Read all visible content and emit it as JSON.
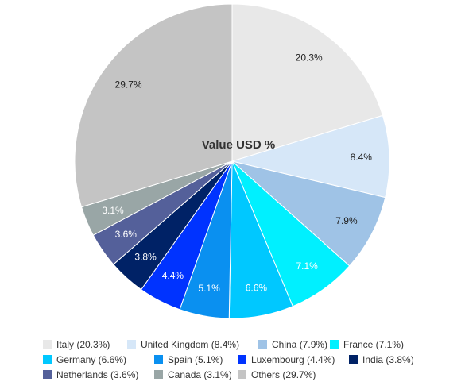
{
  "chart_data": {
    "type": "pie",
    "title": "Value USD %",
    "slices": [
      {
        "name": "Italy",
        "value": 20.3,
        "label": "20.3%",
        "legend": "Italy (20.3%)",
        "color": "#e8e8e8",
        "label_color": "#222222"
      },
      {
        "name": "United Kingdom",
        "value": 8.4,
        "label": "8.4%",
        "legend": "United Kingdom (8.4%)",
        "color": "#d6e7f8",
        "label_color": "#222222"
      },
      {
        "name": "China",
        "value": 7.9,
        "label": "7.9%",
        "legend": "China (7.9%)",
        "color": "#9fc3e6",
        "label_color": "#222222"
      },
      {
        "name": "France",
        "value": 7.1,
        "label": "7.1%",
        "legend": "France (7.1%)",
        "color": "#00f0ff",
        "label_color": "#ffffff"
      },
      {
        "name": "Germany",
        "value": 6.6,
        "label": "6.6%",
        "legend": "Germany (6.6%)",
        "color": "#00c8ff",
        "label_color": "#ffffff"
      },
      {
        "name": "Spain",
        "value": 5.1,
        "label": "5.1%",
        "legend": "Spain (5.1%)",
        "color": "#0a90f0",
        "label_color": "#ffffff"
      },
      {
        "name": "Luxembourg",
        "value": 4.4,
        "label": "4.4%",
        "legend": "Luxembourg (4.4%)",
        "color": "#0033ff",
        "label_color": "#ffffff"
      },
      {
        "name": "India",
        "value": 3.8,
        "label": "3.8%",
        "legend": "India (3.8%)",
        "color": "#002266",
        "label_color": "#ffffff"
      },
      {
        "name": "Netherlands",
        "value": 3.6,
        "label": "3.6%",
        "legend": "Netherlands (3.6%)",
        "color": "#54609a",
        "label_color": "#ffffff"
      },
      {
        "name": "Canada",
        "value": 3.1,
        "label": "3.1%",
        "legend": "Canada (3.1%)",
        "color": "#99a6a6",
        "label_color": "#ffffff"
      },
      {
        "name": "Others",
        "value": 29.7,
        "label": "29.7%",
        "legend": "Others (29.7%)",
        "color": "#c4c4c4",
        "label_color": "#222222"
      }
    ],
    "legend_placement": "bottom"
  }
}
